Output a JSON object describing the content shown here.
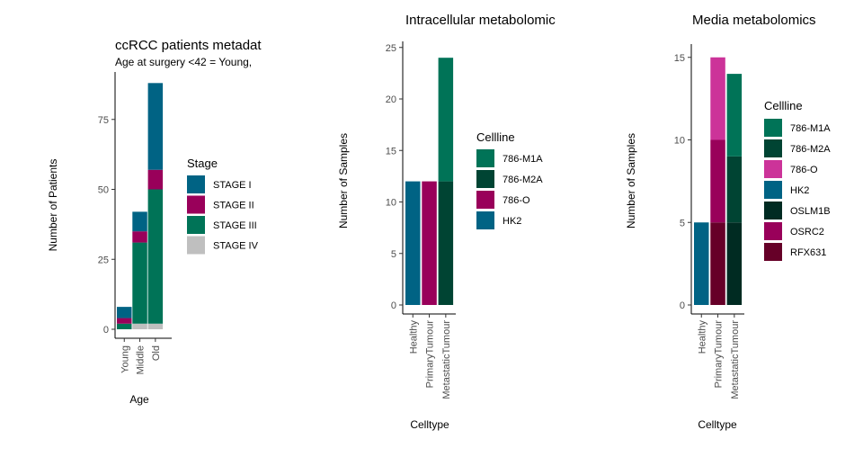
{
  "colors": {
    "teal_blue": "#006384",
    "magenta": "#99005a",
    "green": "#007357",
    "grey": "#bfbfbf",
    "dark_green": "#004433",
    "pink": "#cc3399",
    "very_dark_green": "#002b22",
    "dark_wine": "#660028"
  },
  "chart_data": [
    {
      "type": "bar",
      "stacked": true,
      "title": "ccRCC patients metadat",
      "subtitle": "Age at surgery <42 = Young,",
      "xlabel": "Age",
      "ylabel": "Number of Patients",
      "categories": [
        "Young",
        "Middle",
        "Old"
      ],
      "ylim": [
        0,
        90
      ],
      "yticks": [
        0,
        25,
        50,
        75
      ],
      "legend_title": "Stage",
      "legend_position": "right",
      "series": [
        {
          "name": "STAGE IV",
          "color": "#bfbfbf",
          "values": [
            0,
            2,
            2
          ]
        },
        {
          "name": "STAGE III",
          "color": "#007357",
          "values": [
            2,
            29,
            48
          ]
        },
        {
          "name": "STAGE II",
          "color": "#99005a",
          "values": [
            2,
            4,
            7
          ]
        },
        {
          "name": "STAGE I",
          "color": "#006384",
          "values": [
            4,
            7,
            31
          ]
        }
      ],
      "legend_order": [
        "STAGE I",
        "STAGE II",
        "STAGE III",
        "STAGE IV"
      ]
    },
    {
      "type": "bar",
      "stacked": true,
      "title": "Intracellular metabolomic",
      "xlabel": "Celltype",
      "ylabel": "Number of Samples",
      "categories": [
        "Healthy",
        "PrimaryTumour",
        "MetastaticTumour"
      ],
      "ylim": [
        0,
        25
      ],
      "yticks": [
        0,
        5,
        10,
        15,
        20,
        25
      ],
      "legend_title": "Cellline",
      "legend_position": "right",
      "series": [
        {
          "name": "HK2",
          "color": "#006384",
          "values": [
            12,
            0,
            0
          ]
        },
        {
          "name": "786-O",
          "color": "#99005a",
          "values": [
            0,
            12,
            0
          ]
        },
        {
          "name": "786-M2A",
          "color": "#004433",
          "values": [
            0,
            0,
            12
          ]
        },
        {
          "name": "786-M1A",
          "color": "#007357",
          "values": [
            0,
            0,
            12
          ]
        }
      ],
      "legend_order": [
        "786-M1A",
        "786-M2A",
        "786-O",
        "HK2"
      ]
    },
    {
      "type": "bar",
      "stacked": true,
      "title": "Media metabolomics",
      "xlabel": "Celltype",
      "ylabel": "Number of Samples",
      "categories": [
        "Healthy",
        "PrimaryTumour",
        "MetastaticTumour"
      ],
      "ylim": [
        0,
        15
      ],
      "yticks": [
        0,
        5,
        10,
        15
      ],
      "legend_title": "Cellline",
      "legend_position": "right",
      "series": [
        {
          "name": "HK2",
          "color": "#006384",
          "values": [
            5,
            0,
            0
          ]
        },
        {
          "name": "RFX631",
          "color": "#660028",
          "values": [
            0,
            5,
            0
          ]
        },
        {
          "name": "OSRC2",
          "color": "#99005a",
          "values": [
            0,
            5,
            0
          ]
        },
        {
          "name": "786-O",
          "color": "#cc3399",
          "values": [
            0,
            5,
            0
          ]
        },
        {
          "name": "OSLM1B",
          "color": "#002b22",
          "values": [
            0,
            0,
            5
          ]
        },
        {
          "name": "786-M2A",
          "color": "#004433",
          "values": [
            0,
            0,
            4
          ]
        },
        {
          "name": "786-M1A",
          "color": "#007357",
          "values": [
            0,
            0,
            5
          ]
        }
      ],
      "legend_order": [
        "786-M1A",
        "786-M2A",
        "786-O",
        "HK2",
        "OSLM1B",
        "OSRC2",
        "RFX631"
      ]
    }
  ]
}
